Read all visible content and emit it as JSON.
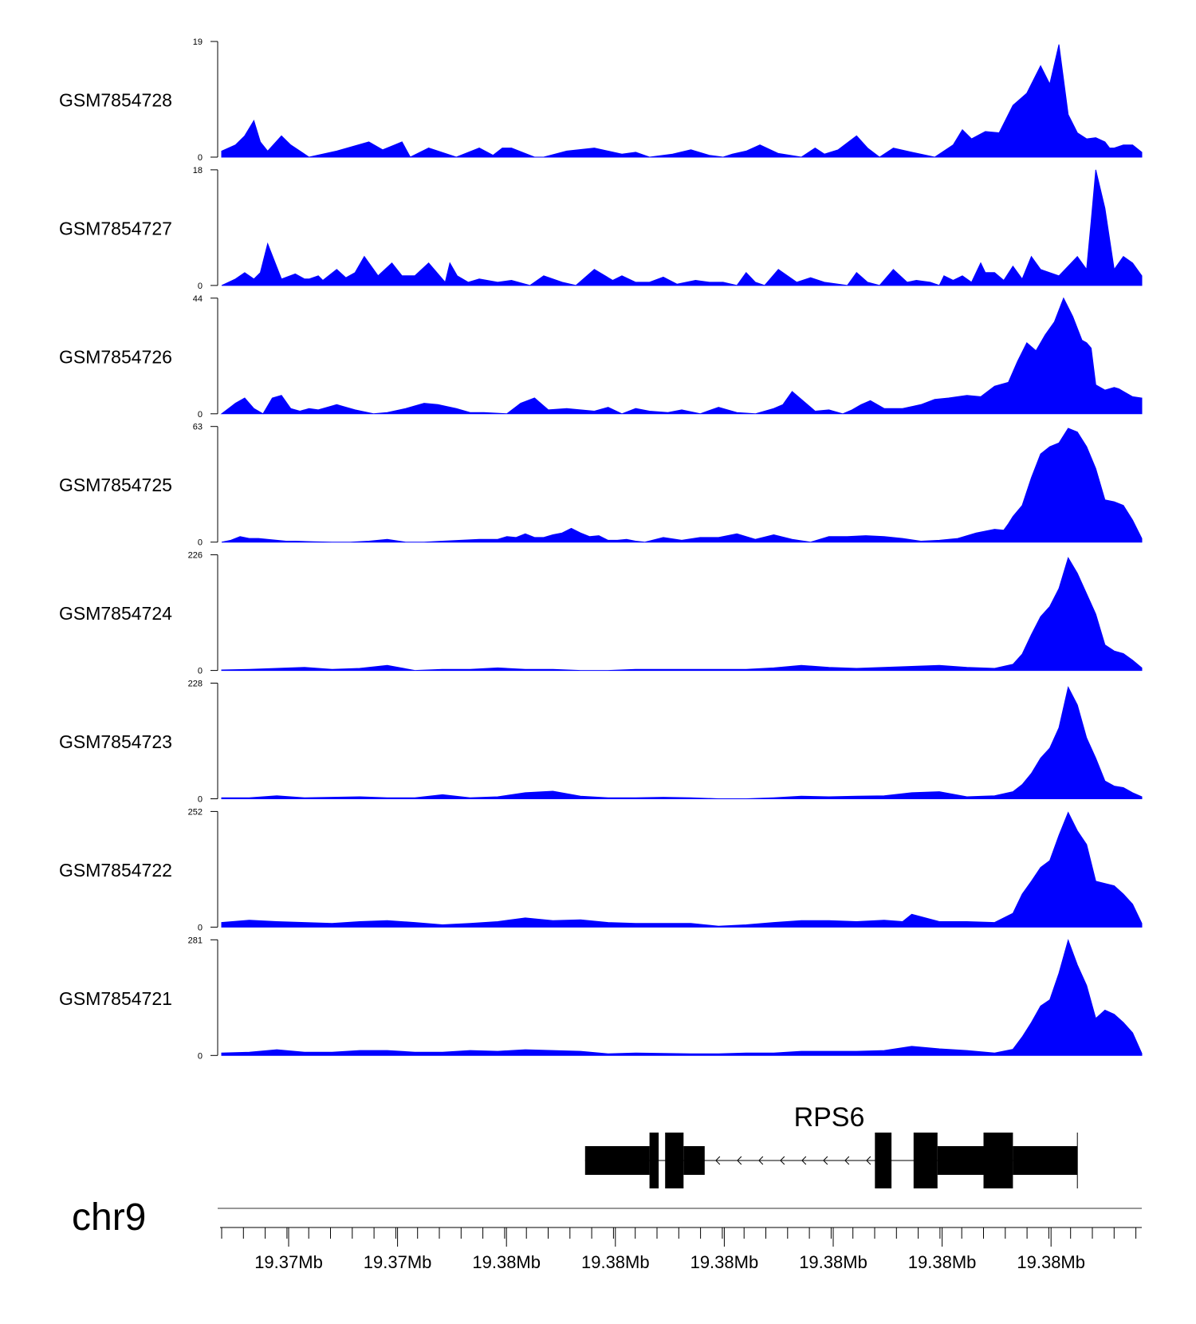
{
  "chart_data": {
    "type": "area",
    "chromosome": "chr9",
    "colors": {
      "track_fill": "#0000ff",
      "axis": "#000000",
      "gene": "#000000",
      "chrom_line": "#777777"
    },
    "x_tick_labels": [
      "19.37Mb",
      "19.37Mb",
      "19.38Mb",
      "19.38Mb",
      "19.38Mb",
      "19.38Mb",
      "19.38Mb",
      "19.38Mb"
    ],
    "tracks": [
      {
        "name": "GSM7854728",
        "ylim": [
          0,
          19
        ],
        "ymax_label": "19",
        "ymin_label": "0",
        "x": [
          0,
          1.5,
          2.5,
          3.5,
          4.2,
          5,
          6.5,
          7.5,
          9.5,
          12.5,
          16,
          17.5,
          18.8,
          19.6,
          20.5,
          22.5,
          25.5,
          28,
          29.5,
          30.5,
          31.5,
          34,
          35,
          37.5,
          40.5,
          43.5,
          45,
          46.5,
          49,
          51,
          53,
          54.5,
          55.5,
          57,
          58.5,
          60.5,
          63,
          64.5,
          65.5,
          67,
          69,
          70.2,
          71.5,
          73,
          75,
          77.5,
          79.5,
          80.5,
          81.5,
          83,
          84.5,
          86,
          87.5,
          89,
          90,
          91,
          92,
          93,
          94,
          95,
          96,
          96.5,
          97,
          98,
          99,
          100
        ],
        "y": [
          1,
          2,
          3.5,
          6,
          2.5,
          1,
          3.5,
          2,
          0,
          1,
          2.5,
          1.2,
          2,
          2.5,
          0,
          1.5,
          0,
          1.5,
          0.3,
          1.5,
          1.5,
          0,
          0,
          1,
          1.5,
          0.5,
          0.8,
          0,
          0.5,
          1.2,
          0.3,
          0,
          0.5,
          1,
          2,
          0.6,
          0,
          1.5,
          0.5,
          1.2,
          3.5,
          1.5,
          0,
          1.5,
          0.8,
          0,
          2,
          4.5,
          3,
          4.2,
          4,
          8.5,
          10.5,
          15,
          12,
          18.5,
          7,
          4,
          3,
          3.2,
          2.5,
          1.5,
          1.5,
          2,
          2,
          0.8
        ]
      },
      {
        "name": "GSM7854727",
        "ylim": [
          0,
          18
        ],
        "ymax_label": "18",
        "ymin_label": "0",
        "x": [
          0,
          1.5,
          2.5,
          3.5,
          4.2,
          5,
          6.5,
          8,
          9,
          9.5,
          10.5,
          11,
          12.5,
          13.5,
          14.5,
          15.5,
          17,
          18.5,
          19.6,
          21,
          22.5,
          24.3,
          24.8,
          25.6,
          26.8,
          28,
          30,
          31.5,
          33.5,
          35,
          37,
          38.5,
          40.5,
          42.5,
          43.5,
          45,
          46.5,
          48,
          49.5,
          51.5,
          53,
          54.5,
          56,
          57,
          58,
          59,
          60.5,
          62.5,
          64,
          65.5,
          68,
          69,
          70.2,
          71.5,
          73,
          74.5,
          75.5,
          77,
          78,
          78.5,
          79.5,
          80.5,
          81.5,
          82.5,
          83,
          84,
          85,
          86,
          87,
          88,
          89,
          90,
          91,
          92,
          93,
          94,
          94.5,
          95,
          96,
          97,
          98,
          99,
          100
        ],
        "y": [
          0,
          1,
          2,
          1,
          2,
          6.5,
          1,
          1.8,
          1,
          1,
          1.5,
          0.8,
          2.5,
          1.2,
          2,
          4.5,
          1.5,
          3.5,
          1.5,
          1.5,
          3.5,
          0.5,
          3.5,
          1.5,
          0.5,
          1,
          0.5,
          0.8,
          0,
          1.5,
          0.5,
          0,
          2.5,
          0.8,
          1.5,
          0.5,
          0.5,
          1.3,
          0.2,
          0.8,
          0.5,
          0.5,
          0,
          2,
          0.5,
          0,
          2.5,
          0.5,
          1.2,
          0.5,
          0,
          2,
          0.5,
          0,
          2.5,
          0.5,
          0.8,
          0.5,
          0,
          1.5,
          0.8,
          1.5,
          0.5,
          3.5,
          2,
          2,
          0.8,
          3,
          1,
          4.5,
          2.5,
          2,
          1.5,
          3,
          4.5,
          2.5,
          10,
          18,
          12,
          2.5,
          4.5,
          3.5,
          1.5
        ]
      },
      {
        "name": "GSM7854726",
        "ylim": [
          0,
          44
        ],
        "ymax_label": "44",
        "ymin_label": "0",
        "x": [
          0,
          1.5,
          2.5,
          3.5,
          4.5,
          5.5,
          6.5,
          7.5,
          8.5,
          9.5,
          10.5,
          12.5,
          14.5,
          16.5,
          18,
          20,
          22,
          23.5,
          25.5,
          27,
          28.5,
          31,
          32.5,
          34,
          35.5,
          37.5,
          39,
          40.5,
          42,
          43.5,
          45,
          46.5,
          48.5,
          50,
          52,
          54,
          56,
          58,
          60,
          61,
          62,
          63.5,
          64.5,
          66,
          67.5,
          68.5,
          69.5,
          70.5,
          72,
          74,
          76,
          77.5,
          79,
          81,
          82.5,
          84,
          85.5,
          86.5,
          87.5,
          88.5,
          89.5,
          90.5,
          91.5,
          92.5,
          93.5,
          94,
          94.5,
          95,
          96,
          97,
          97.5,
          98,
          99,
          100
        ],
        "y": [
          0,
          4,
          6,
          2,
          0,
          6,
          7,
          2,
          1,
          2,
          1.5,
          3.5,
          1.5,
          0,
          0.5,
          2,
          4,
          3.5,
          2,
          0.5,
          0.5,
          0,
          4,
          6,
          1.5,
          2,
          1.5,
          1,
          2.5,
          0,
          2,
          1,
          0.5,
          1.5,
          0,
          2.5,
          0.5,
          0,
          2,
          3.5,
          8.5,
          4,
          1,
          1.5,
          0,
          1.5,
          3.5,
          5,
          2,
          2,
          3.5,
          5.5,
          6,
          7,
          6.5,
          10.5,
          12,
          20,
          27,
          24,
          30,
          35,
          44,
          37,
          28,
          27,
          25,
          11,
          9,
          10,
          9.5,
          8.5,
          6.5,
          6
        ]
      },
      {
        "name": "GSM7854725",
        "ylim": [
          0,
          63
        ],
        "ymax_label": "63",
        "ymin_label": "0",
        "x": [
          0,
          1,
          2,
          3,
          4,
          5,
          6,
          7,
          8,
          10,
          12,
          14,
          16,
          18,
          20,
          22,
          24,
          26,
          28,
          30,
          31,
          32,
          33,
          34,
          35,
          36,
          37,
          38,
          39,
          40,
          41,
          42,
          43,
          44,
          45,
          46,
          48,
          50,
          52,
          54,
          56,
          58,
          60,
          62,
          64,
          66,
          68,
          70,
          72,
          74,
          76,
          78,
          80,
          82,
          84,
          85,
          85.5,
          86,
          87,
          88,
          89,
          90,
          91,
          92,
          93,
          94,
          95,
          96,
          97,
          98,
          99,
          100
        ],
        "y": [
          0,
          1,
          3,
          2,
          2,
          1.5,
          1,
          0.5,
          0.5,
          0.2,
          0,
          0,
          0.5,
          1.5,
          0,
          0,
          0.5,
          1,
          1.5,
          1.5,
          3,
          2.5,
          4.5,
          2.5,
          2.5,
          4,
          5,
          7.5,
          5,
          3,
          3.5,
          1,
          1,
          1.5,
          0.5,
          0,
          2.5,
          1,
          2.5,
          2.5,
          4.5,
          1.5,
          4,
          1.5,
          0,
          3,
          3,
          3.5,
          3,
          2,
          0.5,
          1,
          2,
          5,
          7,
          6.5,
          10,
          14,
          20,
          35,
          48,
          52,
          54,
          62,
          60,
          52,
          40,
          23,
          22,
          20,
          12,
          2
        ]
      },
      {
        "name": "GSM7854724",
        "ylim": [
          0,
          226
        ],
        "ymax_label": "226",
        "ymin_label": "0",
        "x": [
          0,
          3,
          6,
          9,
          12,
          15,
          18,
          21,
          24,
          27,
          30,
          33,
          36,
          39,
          42,
          45,
          48,
          51,
          54,
          57,
          60,
          63,
          66,
          69,
          72,
          75,
          78,
          81,
          84,
          86,
          87,
          88,
          89,
          90,
          91,
          92,
          93,
          94,
          95,
          96,
          97,
          98,
          99,
          100
        ],
        "y": [
          1,
          2,
          4,
          6,
          2,
          4,
          10,
          0,
          2,
          2,
          5,
          2,
          2,
          0,
          0,
          2,
          2,
          2,
          2,
          2,
          5,
          10,
          6,
          4,
          6,
          8,
          10,
          6,
          4,
          12,
          32,
          70,
          105,
          125,
          160,
          220,
          190,
          150,
          110,
          50,
          38,
          33,
          20,
          5
        ]
      },
      {
        "name": "GSM7854723",
        "ylim": [
          0,
          228
        ],
        "ymax_label": "228",
        "ymin_label": "0",
        "x": [
          0,
          3,
          6,
          9,
          12,
          15,
          18,
          21,
          24,
          27,
          30,
          33,
          36,
          39,
          42,
          45,
          48,
          51,
          54,
          57,
          60,
          63,
          66,
          69,
          72,
          75,
          78,
          81,
          84,
          86,
          87,
          88,
          89,
          90,
          91,
          92,
          93,
          94,
          95,
          96,
          97,
          98,
          99,
          100
        ],
        "y": [
          2,
          2,
          6,
          2,
          3,
          4,
          2,
          2,
          8,
          2,
          4,
          12,
          15,
          5,
          2,
          2,
          3,
          2,
          0,
          0,
          2,
          5,
          4,
          5,
          6,
          12,
          14,
          4,
          6,
          14,
          28,
          50,
          80,
          100,
          140,
          220,
          185,
          120,
          80,
          35,
          25,
          22,
          12,
          4
        ]
      },
      {
        "name": "GSM7854722",
        "ylim": [
          0,
          252
        ],
        "ymax_label": "252",
        "ymin_label": "0",
        "x": [
          0,
          3,
          6,
          9,
          12,
          15,
          18,
          21,
          24,
          27,
          30,
          33,
          36,
          39,
          42,
          45,
          48,
          51,
          54,
          57,
          60,
          63,
          66,
          69,
          72,
          74,
          75,
          78,
          81,
          84,
          86,
          87,
          88,
          89,
          90,
          91,
          92,
          93,
          94,
          95,
          96,
          97,
          98,
          99,
          100
        ],
        "y": [
          10,
          15,
          12,
          10,
          8,
          12,
          14,
          10,
          5,
          8,
          12,
          20,
          14,
          16,
          10,
          8,
          8,
          8,
          2,
          5,
          10,
          14,
          14,
          12,
          15,
          12,
          28,
          12,
          12,
          10,
          30,
          72,
          100,
          130,
          145,
          200,
          250,
          210,
          180,
          100,
          95,
          90,
          72,
          50,
          8
        ]
      },
      {
        "name": "GSM7854721",
        "ylim": [
          0,
          281
        ],
        "ymax_label": "281",
        "ymin_label": "0",
        "x": [
          0,
          3,
          6,
          9,
          12,
          15,
          18,
          21,
          24,
          27,
          30,
          33,
          36,
          39,
          42,
          45,
          48,
          51,
          54,
          57,
          60,
          63,
          66,
          69,
          72,
          75,
          78,
          81,
          84,
          86,
          87,
          88,
          89,
          90,
          91,
          92,
          93,
          94,
          95,
          96,
          97,
          98,
          99,
          100
        ],
        "y": [
          6,
          8,
          14,
          8,
          8,
          12,
          12,
          8,
          8,
          12,
          10,
          14,
          12,
          10,
          4,
          6,
          5,
          4,
          4,
          6,
          6,
          10,
          10,
          10,
          12,
          22,
          16,
          12,
          6,
          15,
          45,
          80,
          120,
          135,
          200,
          280,
          220,
          170,
          90,
          110,
          100,
          80,
          55,
          5
        ]
      }
    ],
    "gene": {
      "name": "RPS6",
      "strand": "-",
      "span": [
        39.5,
        93
      ],
      "exons": [
        [
          39.5,
          46.5,
          "utr"
        ],
        [
          46.5,
          47.5,
          "cds"
        ],
        [
          48.2,
          50.2,
          "cds"
        ],
        [
          50.2,
          52.5,
          "utr"
        ],
        [
          71,
          72.8,
          "cds"
        ],
        [
          75.2,
          77.8,
          "cds"
        ],
        [
          77.8,
          82.8,
          "utr"
        ],
        [
          82.8,
          86,
          "cds"
        ],
        [
          86,
          93,
          "utr"
        ]
      ]
    }
  }
}
